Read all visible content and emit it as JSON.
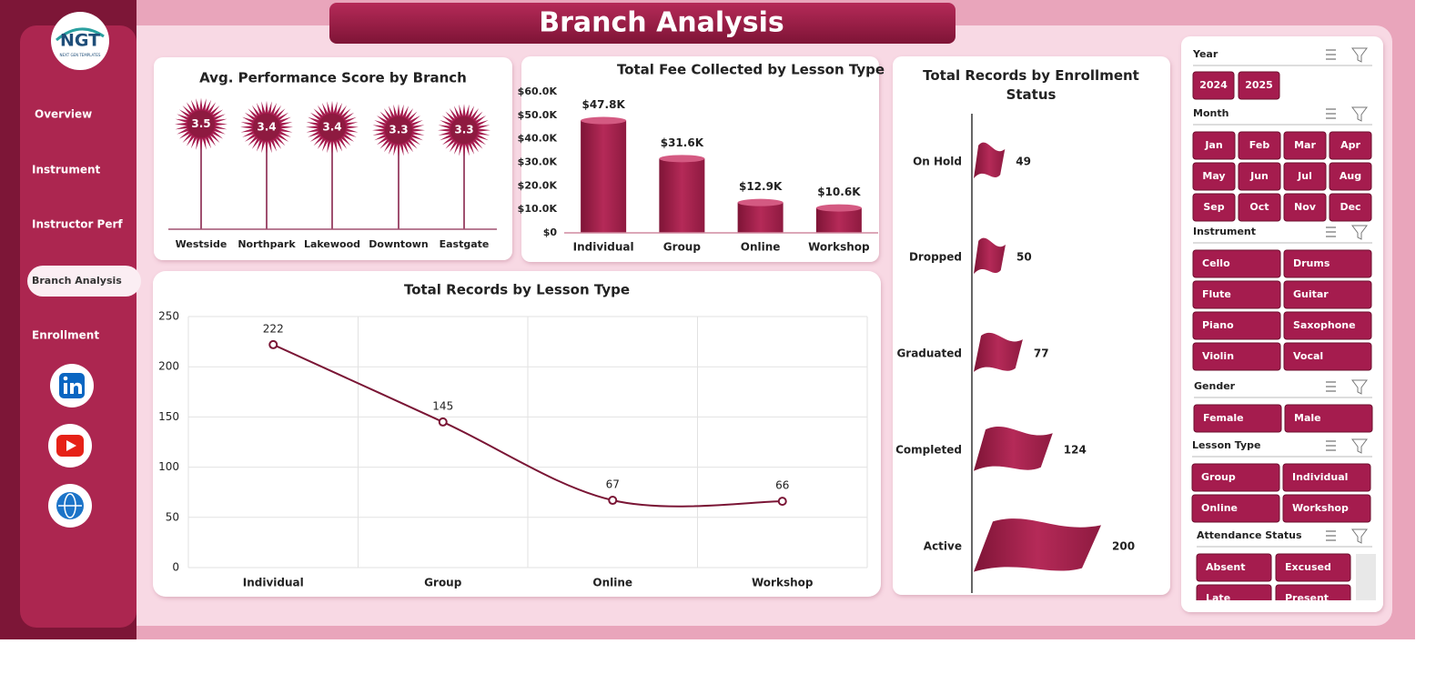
{
  "header": {
    "title": "Branch Analysis",
    "logo": "NGT",
    "logo_tagline": "NEXT GEN TEMPLATES"
  },
  "nav": {
    "items": [
      "Overview",
      "Instrument",
      "Instructor Perf",
      "Branch Analysis",
      "Enrollment"
    ],
    "active": 3
  },
  "chart_data": [
    {
      "type": "lollipop",
      "title": "Avg. Performance Score by Branch",
      "categories": [
        "Westside",
        "Northpark",
        "Lakewood",
        "Downtown",
        "Eastgate"
      ],
      "values": [
        3.5,
        3.4,
        3.4,
        3.3,
        3.3
      ],
      "color": "#a51c4e"
    },
    {
      "type": "bar",
      "title": "Total Fee Collected by Lesson Type",
      "categories": [
        "Individual",
        "Group",
        "Online",
        "Workshop"
      ],
      "values": [
        47800,
        31600,
        12900,
        10600
      ],
      "value_labels": [
        "$47.8K",
        "$31.6K",
        "$12.9K",
        "$10.6K"
      ],
      "ylim": [
        0,
        60000
      ],
      "yticks": [
        {
          "value": 0,
          "label": "$0"
        },
        {
          "value": 10000,
          "label": "$10.0K"
        },
        {
          "value": 20000,
          "label": "$20.0K"
        },
        {
          "value": 30000,
          "label": "$30.0K"
        },
        {
          "value": 40000,
          "label": "$40.0K"
        },
        {
          "value": 50000,
          "label": "$50.0K"
        },
        {
          "value": 60000,
          "label": "$60.0K"
        }
      ],
      "color": "#a51c4e"
    },
    {
      "type": "flag",
      "title": "Total Records by Enrollment Status",
      "categories": [
        "On Hold",
        "Dropped",
        "Graduated",
        "Completed",
        "Active"
      ],
      "values": [
        49,
        50,
        77,
        124,
        200
      ],
      "color": "#a51c4e"
    },
    {
      "type": "line",
      "title": "Total Records by Lesson Type",
      "categories": [
        "Individual",
        "Group",
        "Online",
        "Workshop"
      ],
      "values": [
        222,
        145,
        67,
        66
      ],
      "ylim": [
        0,
        250
      ],
      "yticks": [
        0,
        50,
        100,
        150,
        200,
        250
      ],
      "grid": true,
      "color": "#7a1535"
    }
  ],
  "slicers": [
    {
      "title": "Year",
      "items": [
        "2024",
        "2025"
      ]
    },
    {
      "title": "Month",
      "items": [
        "Jan",
        "Feb",
        "Mar",
        "Apr",
        "May",
        "Jun",
        "Jul",
        "Aug",
        "Sep",
        "Oct",
        "Nov",
        "Dec"
      ]
    },
    {
      "title": "Instrument",
      "items": [
        "Cello",
        "Drums",
        "Flute",
        "Guitar",
        "Piano",
        "Saxophone",
        "Violin",
        "Vocal"
      ]
    },
    {
      "title": "Gender",
      "items": [
        "Female",
        "Male"
      ]
    },
    {
      "title": "Lesson Type",
      "items": [
        "Group",
        "Individual",
        "Online",
        "Workshop"
      ]
    },
    {
      "title": "Attendance Status",
      "items": [
        "Absent",
        "Excused",
        "Late",
        "Present"
      ]
    }
  ]
}
